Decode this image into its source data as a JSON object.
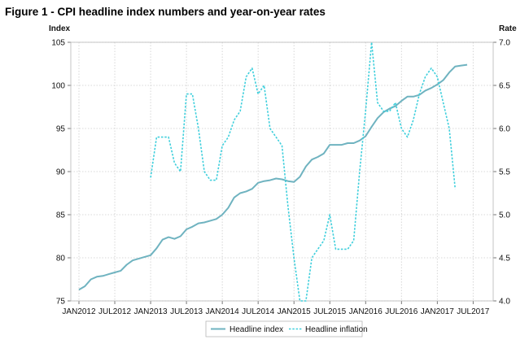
{
  "title": "Figure 1 - CPI headline index numbers and year-on-year rates",
  "chart_data": {
    "type": "line",
    "title": "Figure 1 - CPI headline index numbers and year-on-year rates",
    "xlabel": "",
    "ylabel_left": "Index",
    "ylabel_right": "Rate",
    "x_tick_labels": [
      "JAN2012",
      "JUL2012",
      "JAN2013",
      "JUL2013",
      "JAN2014",
      "JUL2014",
      "JAN2015",
      "JUL2015",
      "JAN2016",
      "JUL2016",
      "JAN2017",
      "JUL2017"
    ],
    "ylim_left": [
      75,
      105
    ],
    "y_ticks_left": [
      "75",
      "80",
      "85",
      "90",
      "95",
      "100",
      "105"
    ],
    "ylim_right": [
      4.0,
      7.0
    ],
    "y_ticks_right": [
      "4.0",
      "4.5",
      "5.0",
      "5.5",
      "6.0",
      "6.5",
      "7.0"
    ],
    "grid": true,
    "legend_position": "bottom",
    "x": [
      "2012-01",
      "2012-02",
      "2012-03",
      "2012-04",
      "2012-05",
      "2012-06",
      "2012-07",
      "2012-08",
      "2012-09",
      "2012-10",
      "2012-11",
      "2012-12",
      "2013-01",
      "2013-02",
      "2013-03",
      "2013-04",
      "2013-05",
      "2013-06",
      "2013-07",
      "2013-08",
      "2013-09",
      "2013-10",
      "2013-11",
      "2013-12",
      "2014-01",
      "2014-02",
      "2014-03",
      "2014-04",
      "2014-05",
      "2014-06",
      "2014-07",
      "2014-08",
      "2014-09",
      "2014-10",
      "2014-11",
      "2014-12",
      "2015-01",
      "2015-02",
      "2015-03",
      "2015-04",
      "2015-05",
      "2015-06",
      "2015-07",
      "2015-08",
      "2015-09",
      "2015-10",
      "2015-11",
      "2015-12",
      "2016-01",
      "2016-02",
      "2016-03",
      "2016-04",
      "2016-05",
      "2016-06",
      "2016-07",
      "2016-08",
      "2016-09",
      "2016-10",
      "2016-11",
      "2016-12",
      "2017-01",
      "2017-02",
      "2017-03",
      "2017-04",
      "2017-05",
      "2017-06"
    ],
    "series": [
      {
        "name": "Headline index",
        "axis": "left",
        "style": "solid",
        "color": "#6fb3c0",
        "values": [
          76.3,
          76.7,
          77.5,
          77.8,
          77.9,
          78.1,
          78.3,
          78.5,
          79.2,
          79.7,
          79.9,
          80.1,
          80.3,
          81.1,
          82.1,
          82.4,
          82.2,
          82.5,
          83.3,
          83.6,
          84.0,
          84.1,
          84.3,
          84.5,
          85.0,
          85.8,
          87.0,
          87.5,
          87.7,
          88.0,
          88.7,
          88.9,
          89.0,
          89.2,
          89.1,
          88.9,
          88.8,
          89.4,
          90.6,
          91.4,
          91.7,
          92.1,
          93.1,
          93.1,
          93.1,
          93.3,
          93.3,
          93.6,
          94.1,
          95.2,
          96.2,
          96.9,
          97.3,
          97.6,
          98.2,
          98.7,
          98.7,
          98.9,
          99.4,
          99.7,
          100.1,
          100.6,
          101.5,
          102.2,
          102.3,
          102.4
        ]
      },
      {
        "name": "Headline inflation",
        "axis": "right",
        "style": "dashed",
        "color": "#3fcfdc",
        "values": [
          null,
          null,
          null,
          null,
          null,
          null,
          null,
          null,
          null,
          null,
          null,
          null,
          5.43,
          5.9,
          5.9,
          5.9,
          5.6,
          5.5,
          6.4,
          6.4,
          6.0,
          5.5,
          5.4,
          5.4,
          5.8,
          5.9,
          6.1,
          6.2,
          6.6,
          6.7,
          6.4,
          6.5,
          6.0,
          5.9,
          5.8,
          5.1,
          4.5,
          4.0,
          4.0,
          4.5,
          4.6,
          4.7,
          5.0,
          4.6,
          4.6,
          4.6,
          4.7,
          5.5,
          6.2,
          7.0,
          6.3,
          6.2,
          6.2,
          6.3,
          6.0,
          5.9,
          6.1,
          6.4,
          6.6,
          6.7,
          6.6,
          6.3,
          6.0,
          5.3,
          null,
          null
        ]
      }
    ]
  }
}
